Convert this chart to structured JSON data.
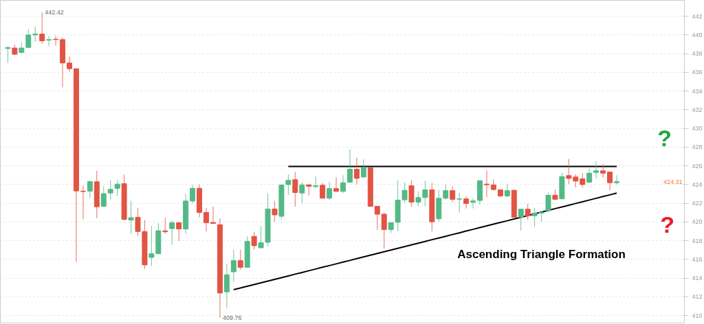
{
  "chart_data": {
    "type": "candlestick",
    "categories": [
      null,
      null,
      null,
      null,
      null,
      null,
      null,
      null,
      null,
      null,
      null,
      null,
      null,
      null,
      null,
      null,
      null,
      null,
      null,
      null,
      null,
      null,
      null,
      null,
      null,
      null,
      null,
      null,
      null,
      null,
      null,
      null,
      null,
      null,
      null,
      null,
      null,
      null,
      null,
      null,
      null,
      null,
      null,
      null,
      null,
      null,
      null,
      null,
      null,
      null,
      null,
      null,
      null,
      null,
      null,
      null,
      null,
      null,
      null,
      null,
      null,
      null,
      null,
      null,
      null,
      null,
      null,
      null,
      null,
      null,
      null,
      null,
      null,
      null,
      null,
      null,
      null,
      null,
      null,
      null,
      null,
      null,
      null,
      null,
      null,
      null,
      null,
      null,
      null,
      null
    ],
    "ohlc": [
      [
        438.55,
        438.8,
        437.0,
        438.65
      ],
      [
        438.6,
        438.95,
        437.88,
        437.93
      ],
      [
        438.12,
        439.2,
        438.12,
        438.6
      ],
      [
        438.66,
        440.66,
        438.66,
        440.0
      ],
      [
        440.0,
        440.9,
        439.27,
        440.1
      ],
      [
        440.1,
        442.42,
        439.07,
        439.37
      ],
      [
        439.45,
        439.9,
        438.8,
        439.5
      ],
      [
        439.55,
        439.9,
        438.85,
        439.5
      ],
      [
        439.5,
        439.75,
        434.39,
        437.0
      ],
      [
        437.0,
        437.7,
        436.05,
        436.39
      ],
      [
        436.39,
        436.4,
        415.75,
        423.32
      ],
      [
        423.3,
        423.9,
        420.27,
        423.25
      ],
      [
        423.3,
        424.45,
        422.59,
        424.32
      ],
      [
        424.3,
        425.47,
        420.41,
        421.63
      ],
      [
        421.68,
        423.81,
        421.6,
        423.03
      ],
      [
        423.1,
        424.5,
        422.4,
        423.49
      ],
      [
        423.59,
        424.5,
        422.8,
        424.05
      ],
      [
        424.1,
        425.05,
        420.2,
        420.27
      ],
      [
        420.2,
        422.27,
        418.75,
        420.46
      ],
      [
        420.5,
        421.5,
        418.5,
        418.98
      ],
      [
        418.98,
        420.2,
        414.97,
        415.41
      ],
      [
        416.21,
        419.56,
        415.33,
        416.6
      ],
      [
        416.6,
        419.85,
        416.6,
        419.07
      ],
      [
        419.05,
        420.45,
        418.75,
        418.95
      ],
      [
        419.29,
        420.15,
        417.6,
        419.92
      ],
      [
        419.92,
        420.0,
        417.95,
        419.25
      ],
      [
        419.25,
        423.0,
        418.75,
        422.24
      ],
      [
        422.24,
        424.0,
        422.0,
        423.6
      ],
      [
        423.6,
        424.0,
        420.5,
        421.02
      ],
      [
        421.02,
        421.5,
        419.0,
        419.92
      ],
      [
        419.95,
        421.65,
        419.8,
        419.85
      ],
      [
        419.71,
        420.39,
        409.76,
        412.4
      ],
      [
        412.53,
        415.51,
        410.77,
        414.36
      ],
      [
        414.67,
        417.04,
        413.58,
        415.87
      ],
      [
        415.87,
        417.04,
        414.9,
        415.14
      ],
      [
        415.14,
        418.44,
        415.14,
        417.92
      ],
      [
        418.46,
        418.95,
        417.04,
        417.46
      ],
      [
        417.24,
        419.56,
        417.17,
        417.78
      ],
      [
        417.83,
        423.08,
        417.39,
        421.39
      ],
      [
        421.39,
        422.25,
        420.02,
        420.76
      ],
      [
        420.61,
        423.96,
        420.27,
        423.96
      ],
      [
        424.0,
        425.1,
        422.91,
        424.45
      ],
      [
        424.52,
        425.35,
        421.64,
        423.15
      ],
      [
        423.1,
        424.25,
        422.0,
        423.96
      ],
      [
        423.98,
        424.0,
        422.83,
        423.81
      ],
      [
        423.78,
        424.86,
        423.64,
        423.88
      ],
      [
        423.93,
        424.17,
        422.54,
        422.54
      ],
      [
        422.54,
        424.3,
        422.37,
        423.57
      ],
      [
        423.57,
        424.79,
        423.27,
        423.27
      ],
      [
        423.27,
        424.98,
        423.1,
        424.2
      ],
      [
        424.25,
        427.79,
        424.25,
        425.64
      ],
      [
        425.64,
        426.86,
        424.0,
        424.66
      ],
      [
        424.81,
        426.69,
        424.74,
        425.79
      ],
      [
        425.79,
        425.79,
        421.6,
        421.68
      ],
      [
        421.68,
        421.68,
        419.12,
        420.83
      ],
      [
        420.83,
        421.0,
        417.17,
        419.19
      ],
      [
        419.19,
        419.93,
        418.83,
        419.93
      ],
      [
        419.97,
        424.44,
        419.0,
        422.34
      ],
      [
        422.37,
        424.25,
        422.05,
        423.39
      ],
      [
        423.88,
        424.5,
        421.64,
        422.12
      ],
      [
        422.12,
        423.27,
        421.68,
        422.61
      ],
      [
        422.61,
        424.44,
        421.68,
        423.44
      ],
      [
        423.44,
        424.2,
        419.0,
        420.02
      ],
      [
        420.34,
        423.44,
        420.02,
        422.54
      ],
      [
        422.54,
        424.0,
        422.37,
        423.35
      ],
      [
        423.35,
        423.83,
        422.12,
        422.42
      ],
      [
        422.44,
        423.15,
        421.0,
        422.47
      ],
      [
        422.47,
        422.78,
        421.44,
        421.98
      ],
      [
        422.1,
        422.54,
        421.44,
        422.25
      ],
      [
        422.3,
        424.42,
        421.88,
        424.42
      ],
      [
        424.05,
        425.52,
        422.66,
        423.98
      ],
      [
        423.96,
        424.54,
        423.35,
        423.47
      ],
      [
        423.44,
        423.44,
        422.66,
        422.78
      ],
      [
        422.78,
        424.08,
        422.66,
        423.35
      ],
      [
        423.39,
        423.44,
        420.51,
        420.51
      ],
      [
        420.51,
        421.37,
        419.07,
        421.37
      ],
      [
        421.37,
        421.93,
        420.22,
        420.66
      ],
      [
        420.66,
        421.49,
        419.49,
        420.95
      ],
      [
        420.95,
        421.05,
        420.02,
        421.05
      ],
      [
        421.2,
        423.15,
        421.07,
        422.86
      ],
      [
        422.86,
        423.44,
        422.42,
        422.42
      ],
      [
        422.47,
        425.27,
        422.47,
        424.86
      ],
      [
        424.96,
        426.74,
        424.05,
        424.66
      ],
      [
        424.81,
        425.1,
        423.69,
        424.37
      ],
      [
        424.61,
        425.22,
        423.69,
        424.0
      ],
      [
        424.25,
        425.71,
        424.25,
        425.22
      ],
      [
        425.3,
        426.5,
        424.66,
        425.47
      ],
      [
        425.47,
        426.2,
        424.74,
        425.22
      ],
      [
        425.35,
        425.35,
        423.39,
        424.2
      ],
      [
        424.2,
        424.98,
        424.0,
        424.31
      ]
    ],
    "colors": [
      "#53b987",
      "#e25443",
      "#53b987",
      "#53b987",
      "#53b987",
      "#e25443",
      "#53b987",
      "#e25443",
      "#e25443",
      "#e25443",
      "#e25443",
      "#e25443",
      "#53b987",
      "#e25443",
      "#53b987",
      "#53b987",
      "#53b987",
      "#e25443",
      "#53b987",
      "#e25443",
      "#e25443",
      "#53b987",
      "#53b987",
      "#e25443",
      "#53b987",
      "#e25443",
      "#53b987",
      "#53b987",
      "#e25443",
      "#e25443",
      "#e25443",
      "#e25443",
      "#53b987",
      "#53b987",
      "#e25443",
      "#53b987",
      "#e25443",
      "#53b987",
      "#53b987",
      "#e25443",
      "#53b987",
      "#53b987",
      "#e25443",
      "#53b987",
      "#e25443",
      "#53b987",
      "#e25443",
      "#53b987",
      "#e25443",
      "#53b987",
      "#53b987",
      "#e25443",
      "#53b987",
      "#e25443",
      "#e25443",
      "#e25443",
      "#53b987",
      "#53b987",
      "#53b987",
      "#e25443",
      "#53b987",
      "#53b987",
      "#e25443",
      "#53b987",
      "#53b987",
      "#e25443",
      "#53b987",
      "#e25443",
      "#53b987",
      "#53b987",
      "#e25443",
      "#e25443",
      "#e25443",
      "#53b987",
      "#e25443",
      "#53b987",
      "#e25443",
      "#53b987",
      "#53b987",
      "#53b987",
      "#e25443",
      "#53b987",
      "#e25443",
      "#e25443",
      "#e25443",
      "#53b987",
      "#53b987",
      "#e25443",
      "#e25443",
      "#53b987"
    ],
    "series": [
      {
        "type": "line",
        "color": "#000000",
        "values": [
          null,
          null,
          null,
          null,
          null,
          null,
          null,
          null,
          null,
          null,
          null,
          null,
          null,
          null,
          null,
          null,
          null,
          null,
          null,
          null,
          null,
          null,
          null,
          null,
          null,
          null,
          null,
          null,
          null,
          null,
          null,
          null,
          null,
          null,
          null,
          null,
          null,
          null,
          null,
          null,
          null,
          425.93,
          425.93,
          425.93,
          425.93,
          425.93,
          425.93,
          425.93,
          425.93,
          425.93,
          425.93,
          425.93,
          425.93,
          425.93,
          425.93,
          425.93,
          425.93,
          425.93,
          425.93,
          425.93,
          425.93,
          425.93,
          425.93,
          425.93,
          425.93,
          425.93,
          425.93,
          425.93,
          425.93,
          425.93,
          425.93,
          425.93,
          425.93,
          425.93,
          425.93,
          425.93,
          425.93,
          425.93,
          425.93,
          425.93,
          425.93,
          425.93,
          425.93,
          425.93,
          425.93,
          425.93,
          425.93,
          425.93,
          425.93,
          425.93
        ]
      },
      {
        "type": "line",
        "color": "#000000",
        "values": [
          null,
          null,
          null,
          null,
          null,
          null,
          null,
          null,
          null,
          null,
          null,
          null,
          null,
          null,
          null,
          null,
          null,
          null,
          null,
          null,
          null,
          null,
          null,
          null,
          null,
          null,
          null,
          null,
          null,
          null,
          null,
          null,
          null,
          412.76,
          412.94,
          413.13,
          413.31,
          413.5,
          413.68,
          413.86,
          414.05,
          414.23,
          414.42,
          414.6,
          414.79,
          414.97,
          415.16,
          415.34,
          415.52,
          415.71,
          415.89,
          416.08,
          416.26,
          416.45,
          416.63,
          416.81,
          417.0,
          417.18,
          417.37,
          417.55,
          417.74,
          417.92,
          418.11,
          418.29,
          418.47,
          418.66,
          418.84,
          419.03,
          419.21,
          419.4,
          419.58,
          419.77,
          419.95,
          420.13,
          420.32,
          420.5,
          420.69,
          420.87,
          421.06,
          421.24,
          421.43,
          421.61,
          421.79,
          421.98,
          422.16,
          422.35,
          422.53,
          422.72,
          422.9,
          423.09
        ]
      }
    ],
    "ylim": [
      409.2,
      443.7
    ],
    "yticks": [
      410,
      412,
      414,
      416,
      418,
      420,
      422,
      424,
      426,
      428,
      430,
      432,
      434,
      436,
      438,
      440,
      442
    ],
    "tick_labels": "y",
    "grid": "y",
    "annotations": [
      "442.42",
      "409.76",
      "424.31",
      "Ascending Triangle Formation",
      "?",
      "?"
    ]
  }
}
